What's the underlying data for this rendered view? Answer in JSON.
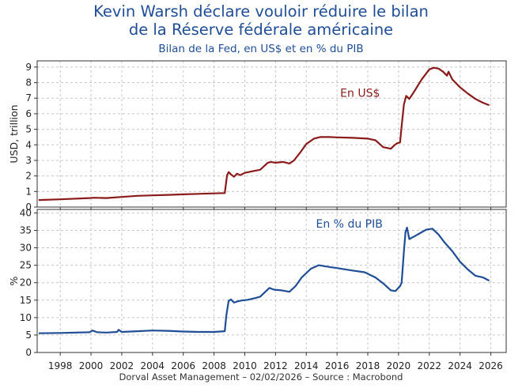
{
  "header": {
    "title_line1": "Kevin Warsh déclare vouloir réduire le bilan",
    "title_line2": "de la Réserve fédérale américaine",
    "subtitle": "Bilan de la Fed, en US$ et en % du PIB"
  },
  "footer": {
    "source": "Dorval Asset Management – 02/02/2026 –   Source : Macrobond"
  },
  "colors": {
    "usd_series": "#8b1a1a",
    "pct_series": "#1f4e97",
    "title": "#1f4e97",
    "grid": "#c8c8c8"
  },
  "chart_data": [
    {
      "type": "line",
      "title": "",
      "ylabel": "USD, trillion",
      "xlim": [
        1996.5,
        2027
      ],
      "ylim": [
        0,
        9.4
      ],
      "yticks": [
        0,
        1,
        2,
        3,
        4,
        5,
        6,
        7,
        8,
        9
      ],
      "xticks": [
        1998,
        2000,
        2002,
        2004,
        2006,
        2008,
        2010,
        2012,
        2014,
        2016,
        2018,
        2020,
        2022,
        2024,
        2026
      ],
      "grid": true,
      "series": [
        {
          "name": "En US$",
          "color": "#8b1a1a",
          "x": [
            1996.6,
            1998,
            1999.9,
            2000.2,
            2001,
            2002,
            2003,
            2004,
            2005,
            2006,
            2007,
            2008,
            2008.7,
            2008.85,
            2008.95,
            2009.1,
            2009.3,
            2009.5,
            2009.7,
            2010,
            2010.5,
            2011,
            2011.5,
            2011.7,
            2012,
            2012.5,
            2012.9,
            2013.2,
            2013.6,
            2014,
            2014.5,
            2014.9,
            2015.5,
            2016,
            2017,
            2018,
            2018.5,
            2019,
            2019.5,
            2019.7,
            2019.9,
            2020.1,
            2020.2,
            2020.35,
            2020.5,
            2020.7,
            2021,
            2021.5,
            2022,
            2022.3,
            2022.6,
            2022.9,
            2023.15,
            2023.25,
            2023.5,
            2024,
            2024.5,
            2025,
            2025.5,
            2025.9
          ],
          "y": [
            0.45,
            0.5,
            0.58,
            0.6,
            0.58,
            0.65,
            0.72,
            0.75,
            0.78,
            0.82,
            0.85,
            0.88,
            0.9,
            2.05,
            2.25,
            2.1,
            1.95,
            2.15,
            2.05,
            2.2,
            2.3,
            2.4,
            2.85,
            2.9,
            2.85,
            2.9,
            2.8,
            3.0,
            3.5,
            4.05,
            4.4,
            4.5,
            4.5,
            4.48,
            4.45,
            4.4,
            4.3,
            3.85,
            3.75,
            3.95,
            4.1,
            4.15,
            5.2,
            6.6,
            7.15,
            6.95,
            7.4,
            8.2,
            8.85,
            8.96,
            8.9,
            8.7,
            8.45,
            8.7,
            8.2,
            7.7,
            7.3,
            6.95,
            6.7,
            6.55
          ]
        }
      ],
      "annotations": [
        {
          "text": "En US$",
          "x": 2017.5,
          "y": 7.1
        }
      ]
    },
    {
      "type": "line",
      "title": "",
      "ylabel": "%",
      "xlim": [
        1996.5,
        2027
      ],
      "ylim": [
        0,
        41
      ],
      "yticks": [
        0,
        5,
        10,
        15,
        20,
        25,
        30,
        35,
        40
      ],
      "xticks": [
        1998,
        2000,
        2002,
        2004,
        2006,
        2008,
        2010,
        2012,
        2014,
        2016,
        2018,
        2020,
        2022,
        2024,
        2026
      ],
      "grid": true,
      "series": [
        {
          "name": "En % du PIB",
          "color": "#1f4e97",
          "x": [
            1996.6,
            1998,
            1999.9,
            2000.1,
            2000.4,
            2001,
            2001.7,
            2001.8,
            2002,
            2003,
            2004,
            2005,
            2006,
            2007,
            2008,
            2008.7,
            2008.8,
            2008.95,
            2009.1,
            2009.3,
            2009.5,
            2009.8,
            2010.2,
            2010.7,
            2011,
            2011.6,
            2011.9,
            2012.4,
            2012.9,
            2013.3,
            2013.7,
            2014.3,
            2014.8,
            2015.5,
            2016,
            2017,
            2017.8,
            2018.5,
            2019,
            2019.5,
            2019.8,
            2020.1,
            2020.2,
            2020.35,
            2020.45,
            2020.55,
            2020.7,
            2021,
            2021.4,
            2021.8,
            2022.2,
            2022.6,
            2023,
            2023.5,
            2024,
            2024.5,
            2025,
            2025.5,
            2025.9
          ],
          "y": [
            5.5,
            5.6,
            5.8,
            6.3,
            5.8,
            5.7,
            5.9,
            6.5,
            5.9,
            6.1,
            6.3,
            6.2,
            6.0,
            5.9,
            5.9,
            6.1,
            10.5,
            14.8,
            15.2,
            14.3,
            14.6,
            14.9,
            15.1,
            15.6,
            16.0,
            18.5,
            18.0,
            17.8,
            17.4,
            19.0,
            21.5,
            24.0,
            25.0,
            24.5,
            24.2,
            23.5,
            23.0,
            21.5,
            19.8,
            17.8,
            17.6,
            19.0,
            20.0,
            29.0,
            34.5,
            35.8,
            32.5,
            33.2,
            34.2,
            35.2,
            35.5,
            33.8,
            31.5,
            29.0,
            26.0,
            23.8,
            22.0,
            21.5,
            20.6
          ]
        }
      ],
      "annotations": [
        {
          "text": "En % du PIB",
          "x": 2016.8,
          "y": 35.8
        }
      ]
    }
  ]
}
